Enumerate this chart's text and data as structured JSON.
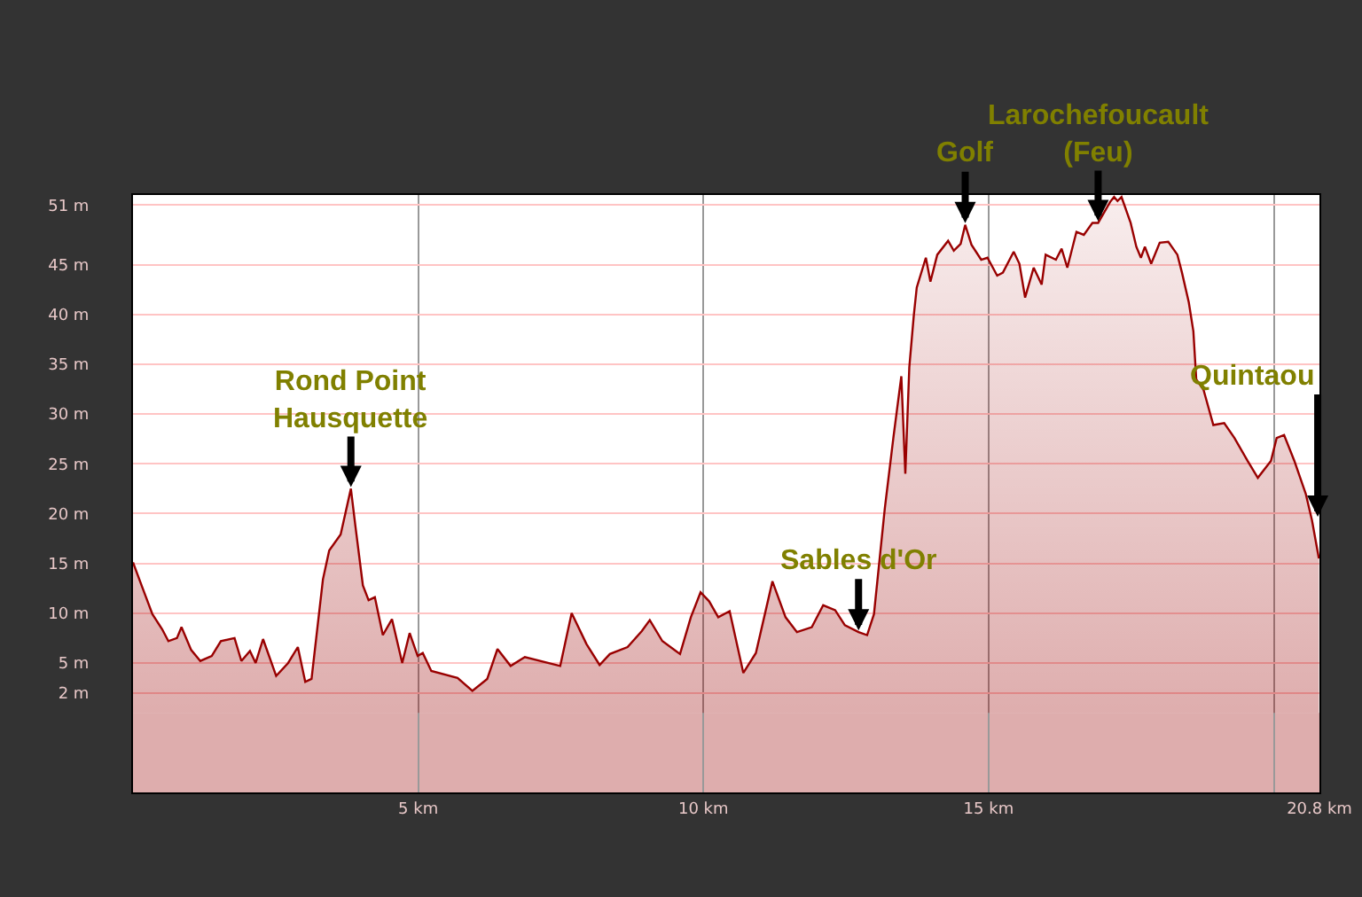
{
  "chart_data": {
    "type": "area",
    "x": [
      0,
      0.15,
      0.34,
      0.51,
      0.62,
      0.77,
      0.85,
      1.02,
      1.18,
      1.38,
      1.54,
      1.78,
      1.9,
      2.05,
      2.15,
      2.28,
      2.51,
      2.72,
      2.89,
      3.02,
      3.13,
      3.33,
      3.44,
      3.64,
      3.82,
      3.9,
      4.03,
      4.13,
      4.24,
      4.38,
      4.54,
      4.72,
      4.85,
      4.99,
      5.08,
      5.23,
      5.69,
      5.95,
      6.21,
      6.39,
      6.62,
      6.87,
      7.49,
      7.69,
      7.95,
      8.18,
      8.36,
      8.67,
      8.92,
      9.06,
      9.28,
      9.59,
      9.78,
      9.95,
      10.1,
      10.26,
      10.46,
      10.7,
      10.92,
      11.21,
      11.44,
      11.64,
      11.9,
      12.1,
      12.31,
      12.48,
      12.72,
      12.87,
      12.99,
      13.18,
      13.33,
      13.47,
      13.54,
      13.61,
      13.69,
      13.74,
      13.9,
      13.98,
      14.1,
      14.29,
      14.39,
      14.51,
      14.59,
      14.7,
      14.87,
      14.98,
      15.15,
      15.25,
      15.44,
      15.54,
      15.64,
      15.79,
      15.93,
      16,
      16.18,
      16.28,
      16.38,
      16.54,
      16.67,
      16.82,
      16.92,
      17.13,
      17.2,
      17.26,
      17.33,
      17.49,
      17.59,
      17.67,
      17.74,
      17.85,
      18,
      18.15,
      18.31,
      18.39,
      18.51,
      18.59,
      18.64,
      18.77,
      18.94,
      19.13,
      19.31,
      19.54,
      19.72,
      19.95,
      20.05,
      20.18,
      20.36,
      20.56,
      20.67,
      20.79
    ],
    "series": [
      {
        "color": "#990000",
        "values": [
          15.1,
          12.8,
          9.9,
          8.4,
          7.2,
          7.5,
          8.6,
          6.3,
          5.2,
          5.7,
          7.2,
          7.5,
          5.2,
          6.2,
          5,
          7.4,
          3.7,
          5,
          6.6,
          3.1,
          3.4,
          13.4,
          16.3,
          17.9,
          22.5,
          18.7,
          12.8,
          11.3,
          11.6,
          7.8,
          9.4,
          5,
          8,
          5.7,
          6,
          4.2,
          3.5,
          2.2,
          3.4,
          6.4,
          4.7,
          5.6,
          4.7,
          10,
          6.9,
          4.8,
          5.9,
          6.6,
          8.2,
          9.3,
          7.2,
          5.9,
          9.6,
          12.1,
          11.2,
          9.6,
          10.2,
          4,
          6,
          13.2,
          9.6,
          8.1,
          8.6,
          10.8,
          10.3,
          8.8,
          8.1,
          7.8,
          9.9,
          20.5,
          27.6,
          33.8,
          24,
          34.7,
          40,
          42.7,
          45.7,
          43.3,
          46,
          47.4,
          46.4,
          47.1,
          49,
          47,
          45.5,
          45.7,
          43.9,
          44.2,
          46.3,
          45.1,
          41.7,
          44.7,
          43,
          46,
          45.5,
          46.6,
          44.7,
          48.3,
          48,
          49.2,
          49.2,
          51.3,
          51.8,
          51.4,
          51.8,
          49.2,
          46.8,
          45.7,
          46.8,
          45.1,
          47.2,
          47.3,
          46,
          44.2,
          41.2,
          38.3,
          33.5,
          32.4,
          28.9,
          29.1,
          27.6,
          25.3,
          23.6,
          25.3,
          27.6,
          27.9,
          25.3,
          22,
          19.3,
          15.5
        ]
      }
    ],
    "xlim": [
      0,
      20.8
    ],
    "xticks": [
      {
        "value": 5,
        "label": "5 km"
      },
      {
        "value": 10,
        "label": "10 km"
      },
      {
        "value": 15,
        "label": "15 km"
      },
      {
        "value": 20,
        "label": null
      },
      {
        "value": 20.8,
        "label": "20.8 km"
      }
    ],
    "ylim": [
      -8,
      52
    ],
    "yticks": [
      {
        "value": 2,
        "label": "2 m"
      },
      {
        "value": 5,
        "label": "5 m"
      },
      {
        "value": 10,
        "label": "10 m"
      },
      {
        "value": 15,
        "label": "15 m"
      },
      {
        "value": 20,
        "label": "20 m"
      },
      {
        "value": 25,
        "label": "25 m"
      },
      {
        "value": 30,
        "label": "30 m"
      },
      {
        "value": 35,
        "label": "35 m"
      },
      {
        "value": 40,
        "label": "40 m"
      },
      {
        "value": 45,
        "label": "45 m"
      },
      {
        "value": 51,
        "label": "51 m"
      }
    ],
    "grid": true,
    "annotations": [
      {
        "text": "Rond Point\nHausquette",
        "x": 3.82,
        "y": 22.5
      },
      {
        "text": "Sables d'Or",
        "x": 12.72,
        "y": 8.1
      },
      {
        "text": "Golf",
        "x": 14.59,
        "y": 49
      },
      {
        "text": "Larochefoucault\n(Feu)",
        "x": 16.92,
        "y": 49.2
      },
      {
        "text": "Quintaou",
        "x": 20.77,
        "y": 19.5
      }
    ]
  }
}
